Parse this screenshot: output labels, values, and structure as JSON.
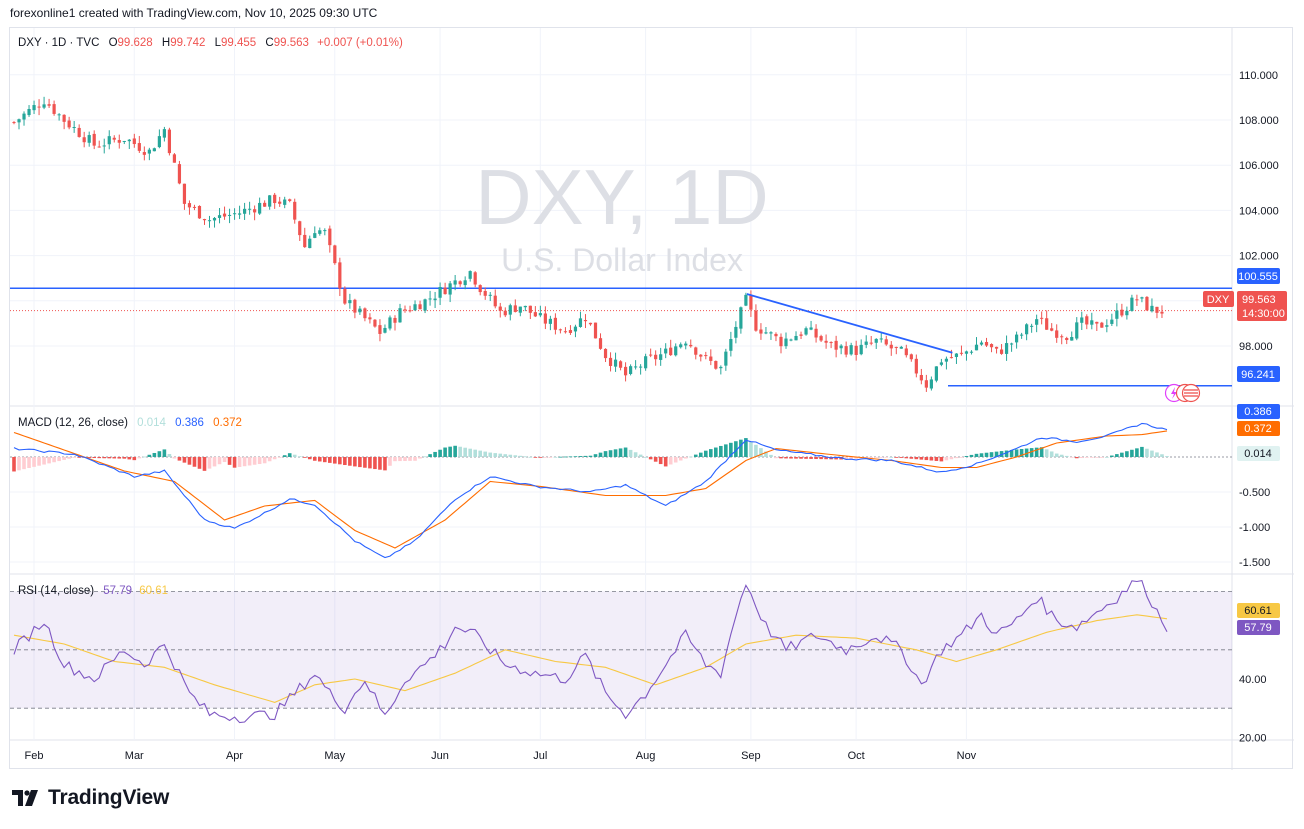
{
  "caption": "forexonline1 created with TradingView.com, Nov 10, 2025 09:30 UTC",
  "brand": "TradingView",
  "colors": {
    "up": "#26a69a",
    "down": "#ef5350",
    "level_line": "#2962ff",
    "trend_line": "#2962ff",
    "macd_line": "#2962ff",
    "signal_line": "#ff6d00",
    "rsi_line": "#7e57c2",
    "rsi_ma": "#f7c844",
    "watermark": "#dddfe5"
  },
  "watermark": {
    "symbol": "DXY, 1D",
    "name": "U.S. Dollar Index"
  },
  "legend": {
    "symbol": "DXY · 1D · TVC",
    "o_label": "O",
    "o": "99.628",
    "h_label": "H",
    "h": "99.742",
    "l_label": "L",
    "l": "99.455",
    "c_label": "C",
    "c": "99.563",
    "change": "+0.007 (+0.01%)"
  },
  "price_labels": {
    "resistance": "100.555",
    "support": "96.241",
    "symbol_tag": "DXY",
    "last": "99.563",
    "countdown": "14:30:00"
  },
  "macd_legend": {
    "title": "MACD (12, 26, close)",
    "hist": "0.014",
    "macd": "0.386",
    "signal": "0.372"
  },
  "rsi_legend": {
    "title": "RSI (14, close)",
    "rsi": "57.79",
    "ma": "60.61"
  },
  "chart_data": [
    {
      "type": "candlestick",
      "title": "DXY, 1D",
      "subtitle": "U.S. Dollar Index",
      "x_ticks": [
        "Feb",
        "Mar",
        "Apr",
        "May",
        "Jun",
        "Jul",
        "Aug",
        "Sep",
        "Oct",
        "Nov"
      ],
      "y_ticks": [
        "110.000",
        "108.000",
        "106.000",
        "104.000",
        "102.000",
        "100.000",
        "98.000"
      ],
      "ylim": [
        95.5,
        111.0
      ],
      "horizontal_levels": [
        100.555,
        96.241
      ],
      "last_price": 99.563,
      "trendline": {
        "from": {
          "date": "Jul 31",
          "price": 100.3
        },
        "to": {
          "date": "Sep 19",
          "price": 97.7
        }
      },
      "close_waypoints": [
        [
          0,
          107.9
        ],
        [
          6,
          108.9
        ],
        [
          10,
          108.0
        ],
        [
          16,
          106.9
        ],
        [
          22,
          107.2
        ],
        [
          27,
          106.6
        ],
        [
          30,
          107.6
        ],
        [
          34,
          104.3
        ],
        [
          39,
          103.6
        ],
        [
          45,
          103.9
        ],
        [
          52,
          104.5
        ],
        [
          55,
          104.2
        ],
        [
          58,
          102.4
        ],
        [
          60,
          103.2
        ],
        [
          62,
          103.0
        ],
        [
          66,
          100.0
        ],
        [
          70,
          99.2
        ],
        [
          73,
          98.6
        ],
        [
          77,
          99.5
        ],
        [
          82,
          100.0
        ],
        [
          87,
          100.7
        ],
        [
          91,
          101.3
        ],
        [
          93,
          100.6
        ],
        [
          97,
          99.5
        ],
        [
          101,
          99.8
        ],
        [
          105,
          99.2
        ],
        [
          110,
          98.7
        ],
        [
          114,
          99.3
        ],
        [
          118,
          97.6
        ],
        [
          122,
          96.7
        ],
        [
          126,
          97.3
        ],
        [
          130,
          97.7
        ],
        [
          134,
          98.3
        ],
        [
          138,
          97.4
        ],
        [
          141,
          97.0
        ],
        [
          144,
          98.9
        ],
        [
          146,
          100.0
        ],
        [
          148,
          98.9
        ],
        [
          153,
          98.2
        ],
        [
          158,
          98.7
        ],
        [
          163,
          98.0
        ],
        [
          168,
          97.8
        ],
        [
          172,
          98.2
        ],
        [
          177,
          97.7
        ],
        [
          180,
          96.9
        ],
        [
          182,
          96.3
        ],
        [
          185,
          97.4
        ],
        [
          189,
          97.6
        ],
        [
          193,
          98.2
        ],
        [
          196,
          97.7
        ],
        [
          200,
          98.3
        ],
        [
          204,
          99.2
        ],
        [
          207,
          98.7
        ],
        [
          210,
          98.5
        ],
        [
          213,
          99.0
        ],
        [
          216,
          98.8
        ],
        [
          220,
          99.4
        ],
        [
          224,
          100.1
        ],
        [
          227,
          99.6
        ],
        [
          229,
          99.56
        ]
      ]
    },
    {
      "type": "bar+line",
      "title": "MACD (12, 26, close)",
      "y_ticks": [
        "-0.500",
        "-1.000",
        "-1.500"
      ],
      "ylim": [
        -1.6,
        0.8
      ],
      "series": [
        {
          "name": "Histogram",
          "last": 0.014
        },
        {
          "name": "MACD",
          "last": 0.386,
          "waypoints": [
            [
              0,
              0.12
            ],
            [
              12,
              0.04
            ],
            [
              24,
              -0.28
            ],
            [
              30,
              -0.2
            ],
            [
              38,
              -0.9
            ],
            [
              44,
              -1.02
            ],
            [
              50,
              -0.8
            ],
            [
              55,
              -0.6
            ],
            [
              60,
              -0.68
            ],
            [
              68,
              -1.2
            ],
            [
              74,
              -1.45
            ],
            [
              80,
              -1.2
            ],
            [
              88,
              -0.6
            ],
            [
              95,
              -0.28
            ],
            [
              104,
              -0.42
            ],
            [
              115,
              -0.5
            ],
            [
              122,
              -0.4
            ],
            [
              130,
              -0.7
            ],
            [
              138,
              -0.35
            ],
            [
              146,
              0.25
            ],
            [
              152,
              0.1
            ],
            [
              165,
              -0.02
            ],
            [
              175,
              -0.05
            ],
            [
              185,
              -0.22
            ],
            [
              192,
              -0.1
            ],
            [
              200,
              0.12
            ],
            [
              205,
              0.28
            ],
            [
              212,
              0.22
            ],
            [
              218,
              0.3
            ],
            [
              225,
              0.48
            ],
            [
              230,
              0.386
            ]
          ]
        },
        {
          "name": "Signal",
          "last": 0.372,
          "waypoints": [
            [
              0,
              0.35
            ],
            [
              10,
              0.1
            ],
            [
              22,
              -0.2
            ],
            [
              32,
              -0.35
            ],
            [
              42,
              -0.9
            ],
            [
              50,
              -0.7
            ],
            [
              60,
              -0.62
            ],
            [
              68,
              -1.05
            ],
            [
              76,
              -1.3
            ],
            [
              86,
              -0.9
            ],
            [
              95,
              -0.35
            ],
            [
              105,
              -0.42
            ],
            [
              118,
              -0.55
            ],
            [
              130,
              -0.55
            ],
            [
              138,
              -0.45
            ],
            [
              146,
              -0.05
            ],
            [
              152,
              0.12
            ],
            [
              165,
              0.02
            ],
            [
              175,
              -0.05
            ],
            [
              185,
              -0.15
            ],
            [
              192,
              -0.15
            ],
            [
              200,
              0.0
            ],
            [
              208,
              0.2
            ],
            [
              218,
              0.3
            ],
            [
              225,
              0.32
            ],
            [
              230,
              0.372
            ]
          ]
        }
      ]
    },
    {
      "type": "line",
      "title": "RSI (14, close)",
      "y_ticks": [
        "40.00",
        "20.00"
      ],
      "ylim": [
        20,
        80
      ],
      "bands": [
        70,
        30
      ],
      "series": [
        {
          "name": "RSI",
          "last": 57.79,
          "waypoints": [
            [
              0,
              50
            ],
            [
              6,
              60
            ],
            [
              10,
              45
            ],
            [
              16,
              40
            ],
            [
              22,
              50
            ],
            [
              26,
              45
            ],
            [
              30,
              52
            ],
            [
              35,
              35
            ],
            [
              39,
              28
            ],
            [
              45,
              27
            ],
            [
              52,
              28
            ],
            [
              56,
              35
            ],
            [
              60,
              42
            ],
            [
              63,
              35
            ],
            [
              66,
              30
            ],
            [
              70,
              40
            ],
            [
              74,
              27
            ],
            [
              78,
              40
            ],
            [
              82,
              45
            ],
            [
              86,
              52
            ],
            [
              88,
              58
            ],
            [
              92,
              55
            ],
            [
              98,
              45
            ],
            [
              104,
              42
            ],
            [
              110,
              40
            ],
            [
              114,
              48
            ],
            [
              118,
              35
            ],
            [
              122,
              28
            ],
            [
              126,
              35
            ],
            [
              130,
              45
            ],
            [
              134,
              55
            ],
            [
              138,
              45
            ],
            [
              141,
              42
            ],
            [
              144,
              62
            ],
            [
              146,
              73
            ],
            [
              150,
              58
            ],
            [
              154,
              50
            ],
            [
              160,
              55
            ],
            [
              166,
              50
            ],
            [
              172,
              55
            ],
            [
              177,
              50
            ],
            [
              181,
              38
            ],
            [
              185,
              50
            ],
            [
              189,
              55
            ],
            [
              193,
              62
            ],
            [
              196,
              55
            ],
            [
              200,
              60
            ],
            [
              204,
              68
            ],
            [
              208,
              60
            ],
            [
              212,
              58
            ],
            [
              216,
              63
            ],
            [
              220,
              68
            ],
            [
              224,
              74
            ],
            [
              226,
              70
            ],
            [
              228,
              63
            ],
            [
              230,
              57.79
            ]
          ]
        },
        {
          "name": "RSI-based MA",
          "last": 60.61,
          "waypoints": [
            [
              0,
              55
            ],
            [
              10,
              52
            ],
            [
              20,
              46
            ],
            [
              30,
              44
            ],
            [
              40,
              38
            ],
            [
              52,
              32
            ],
            [
              60,
              38
            ],
            [
              68,
              40
            ],
            [
              78,
              36
            ],
            [
              88,
              42
            ],
            [
              98,
              50
            ],
            [
              108,
              46
            ],
            [
              118,
              44
            ],
            [
              128,
              38
            ],
            [
              138,
              44
            ],
            [
              146,
              52
            ],
            [
              156,
              55
            ],
            [
              168,
              54
            ],
            [
              180,
              50
            ],
            [
              188,
              46
            ],
            [
              196,
              50
            ],
            [
              206,
              56
            ],
            [
              216,
              60
            ],
            [
              224,
              62
            ],
            [
              230,
              60.61
            ]
          ]
        }
      ]
    }
  ]
}
